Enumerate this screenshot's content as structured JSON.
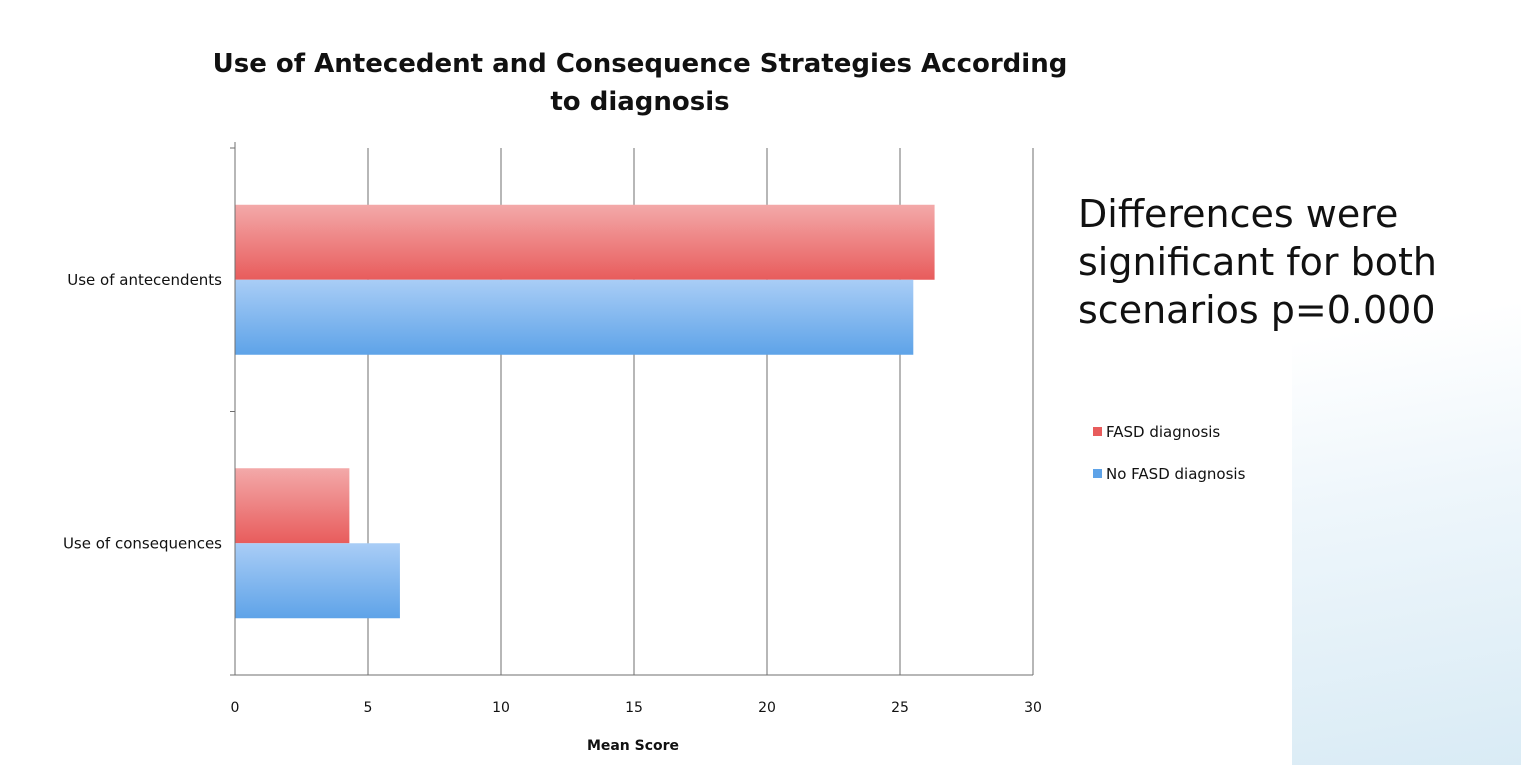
{
  "annotation": {
    "lines": [
      "Differences were",
      "significant for both",
      "scenarios p=0.000"
    ]
  },
  "colors": {
    "FASD diagnosis": "#e85c5c",
    "No FASD diagnosis": "#5ea3e8"
  },
  "chart_data": {
    "type": "bar",
    "orientation": "horizontal",
    "title_lines": [
      "Use of Antecedent and Consequence Strategies According",
      "to diagnosis"
    ],
    "categories": [
      "Use of antecendents",
      "Use of consequences"
    ],
    "series": [
      {
        "name": "FASD diagnosis",
        "values": [
          26.3,
          4.3
        ]
      },
      {
        "name": "No FASD diagnosis",
        "values": [
          25.5,
          6.2
        ]
      }
    ],
    "xlabel": "Mean Score",
    "ylabel": "",
    "xlim": [
      0,
      30
    ],
    "xticks": [
      "0",
      "5",
      "10",
      "15",
      "20",
      "25",
      "30"
    ],
    "grid": "vertical",
    "legend_position": "right"
  }
}
